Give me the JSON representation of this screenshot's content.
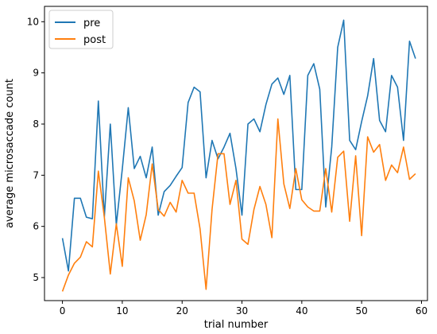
{
  "chart_data": {
    "type": "line",
    "xlabel": "trial number",
    "ylabel": "average microsaccade count",
    "xlim": [
      -3,
      61
    ],
    "ylim": [
      4.55,
      10.3
    ],
    "xticks": [
      0,
      10,
      20,
      30,
      40,
      50,
      60
    ],
    "yticks": [
      5,
      6,
      7,
      8,
      9,
      10
    ],
    "legend_position": "top-left",
    "grid": false,
    "x": [
      0,
      1,
      2,
      3,
      4,
      5,
      6,
      7,
      8,
      9,
      10,
      11,
      12,
      13,
      14,
      15,
      16,
      17,
      18,
      19,
      20,
      21,
      22,
      23,
      24,
      25,
      26,
      27,
      28,
      29,
      30,
      31,
      32,
      33,
      34,
      35,
      36,
      37,
      38,
      39,
      40,
      41,
      42,
      43,
      44,
      45,
      46,
      47,
      48,
      49,
      50,
      51,
      52,
      53,
      54,
      55,
      56,
      57,
      58,
      59
    ],
    "series": [
      {
        "name": "pre",
        "color": "#1f77b4",
        "values": [
          5.77,
          5.13,
          6.55,
          6.55,
          6.18,
          6.15,
          8.45,
          6.18,
          8.0,
          6.03,
          7.12,
          8.32,
          7.13,
          7.37,
          6.95,
          7.55,
          6.22,
          6.68,
          6.8,
          6.98,
          7.15,
          8.42,
          8.72,
          8.63,
          6.95,
          7.68,
          7.32,
          7.55,
          7.82,
          7.13,
          6.22,
          8.0,
          8.1,
          7.85,
          8.38,
          8.78,
          8.9,
          8.58,
          8.95,
          6.72,
          6.72,
          8.95,
          9.18,
          8.68,
          6.38,
          7.55,
          9.5,
          10.03,
          7.68,
          7.5,
          8.05,
          8.55,
          9.28,
          8.07,
          7.85,
          8.95,
          8.72,
          7.68,
          9.62,
          9.28
        ]
      },
      {
        "name": "post",
        "color": "#ff7f0e",
        "values": [
          4.73,
          5.05,
          5.28,
          5.4,
          5.7,
          5.6,
          7.08,
          6.18,
          5.07,
          6.05,
          5.22,
          6.95,
          6.5,
          5.73,
          6.23,
          7.22,
          6.33,
          6.2,
          6.47,
          6.28,
          6.9,
          6.65,
          6.65,
          5.95,
          4.77,
          6.33,
          7.42,
          7.42,
          6.43,
          6.9,
          5.75,
          5.65,
          6.33,
          6.78,
          6.43,
          5.78,
          8.1,
          6.83,
          6.35,
          7.13,
          6.52,
          6.38,
          6.3,
          6.3,
          7.13,
          6.28,
          7.35,
          7.47,
          6.1,
          7.38,
          5.82,
          7.75,
          7.45,
          7.6,
          6.9,
          7.2,
          7.05,
          7.55,
          6.92,
          7.03
        ]
      }
    ]
  }
}
